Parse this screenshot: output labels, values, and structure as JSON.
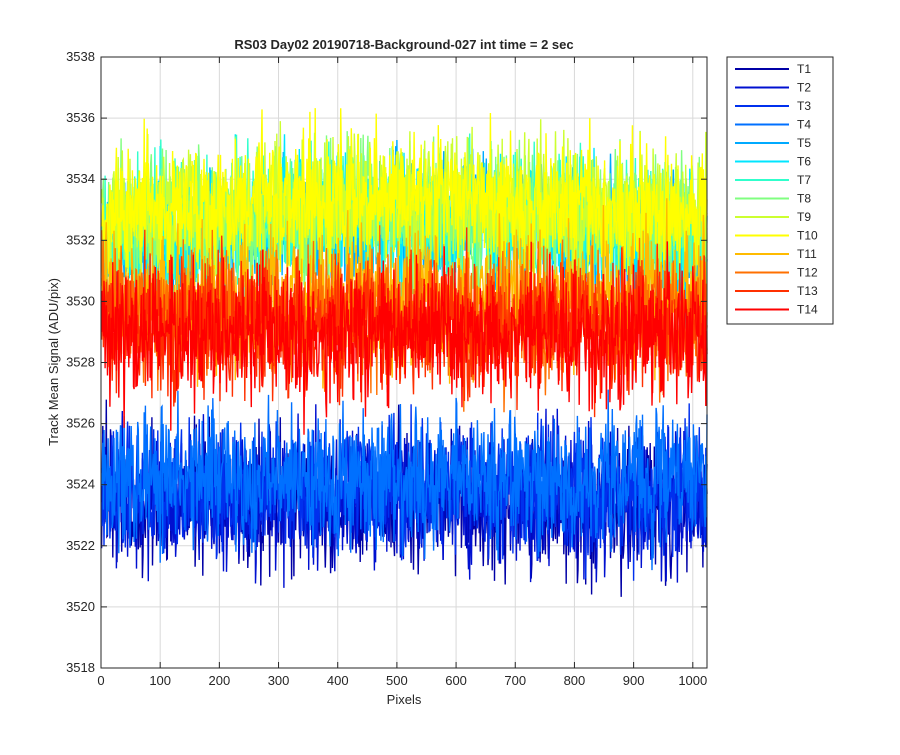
{
  "chart_data": {
    "type": "line",
    "title": "RS03 Day02 20190718-Background-027 int time = 2 sec",
    "xlabel": "Pixels",
    "ylabel": "Track Mean Signal (ADU/pix)",
    "xlim": [
      0,
      1024
    ],
    "ylim": [
      3518,
      3538
    ],
    "xticks": [
      0,
      100,
      200,
      300,
      400,
      500,
      600,
      700,
      800,
      900,
      1000
    ],
    "yticks": [
      3518,
      3520,
      3522,
      3524,
      3526,
      3528,
      3530,
      3532,
      3534,
      3536,
      3538
    ],
    "grid": true,
    "legend_position": "outside-top-right",
    "series": [
      {
        "name": "T1",
        "color": "#0000a6",
        "mean": 3523.4,
        "noise": 1.1,
        "seed": 11
      },
      {
        "name": "T2",
        "color": "#0010d0",
        "mean": 3523.6,
        "noise": 1.1,
        "seed": 12
      },
      {
        "name": "T3",
        "color": "#0030ee",
        "mean": 3523.8,
        "noise": 1.1,
        "seed": 13
      },
      {
        "name": "T4",
        "color": "#0070ff",
        "mean": 3524.2,
        "noise": 1.1,
        "seed": 14
      },
      {
        "name": "T5",
        "color": "#00aaff",
        "mean": 3531.8,
        "noise": 1.1,
        "seed": 15
      },
      {
        "name": "T6",
        "color": "#00e6ff",
        "mean": 3532.0,
        "noise": 1.1,
        "seed": 16
      },
      {
        "name": "T7",
        "color": "#30ffcc",
        "mean": 3532.2,
        "noise": 1.1,
        "seed": 17
      },
      {
        "name": "T8",
        "color": "#80ff80",
        "mean": 3532.4,
        "noise": 1.1,
        "seed": 18
      },
      {
        "name": "T9",
        "color": "#ccff30",
        "mean": 3532.6,
        "noise": 1.1,
        "seed": 19
      },
      {
        "name": "T10",
        "color": "#ffff00",
        "mean": 3532.8,
        "noise": 1.1,
        "seed": 20
      },
      {
        "name": "T11",
        "color": "#ffbb00",
        "mean": 3530.2,
        "noise": 1.1,
        "seed": 21
      },
      {
        "name": "T12",
        "color": "#ff7000",
        "mean": 3529.6,
        "noise": 1.1,
        "seed": 22
      },
      {
        "name": "T13",
        "color": "#ff3000",
        "mean": 3529.2,
        "noise": 1.1,
        "seed": 23
      },
      {
        "name": "T14",
        "color": "#ff0000",
        "mean": 3528.9,
        "noise": 1.1,
        "seed": 24
      }
    ]
  }
}
